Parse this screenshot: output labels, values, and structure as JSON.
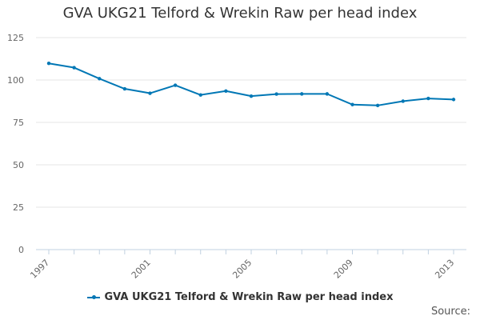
{
  "chart_data": {
    "type": "line",
    "title": "GVA UKG21 Telford & Wrekin Raw per head index",
    "xlabel": "",
    "ylabel": "",
    "x": [
      1997,
      1998,
      1999,
      2000,
      2001,
      2002,
      2003,
      2004,
      2005,
      2006,
      2007,
      2008,
      2009,
      2010,
      2011,
      2012,
      2013
    ],
    "series": [
      {
        "name": "GVA UKG21 Telford & Wrekin Raw per head index",
        "values": [
          109.8,
          107.3,
          100.8,
          94.8,
          92.2,
          96.9,
          91.2,
          93.5,
          90.5,
          91.7,
          91.8,
          91.8,
          85.5,
          85.0,
          87.5,
          89.1,
          88.5
        ],
        "color": "#0077b5"
      }
    ],
    "ylim": [
      0,
      125
    ],
    "y_ticks": [
      0,
      25,
      50,
      75,
      100,
      125
    ],
    "x_tick_labels": [
      "1997",
      "2001",
      "2005",
      "2009",
      "2013"
    ],
    "xlim": [
      1997,
      2013
    ],
    "grid": true,
    "legend_position": "bottom"
  },
  "footer": {
    "source_label": "Source:"
  }
}
